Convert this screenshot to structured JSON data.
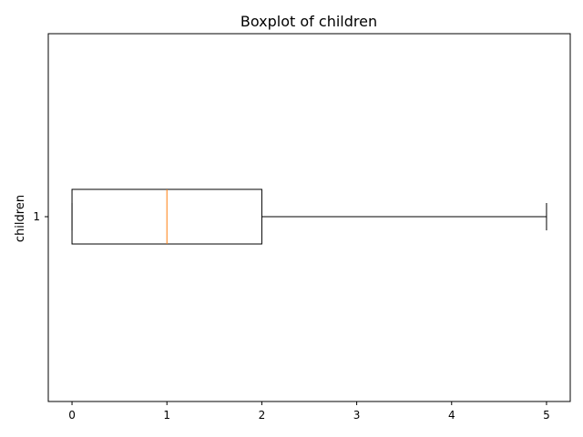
{
  "chart_data": {
    "type": "boxplot",
    "orientation": "horizontal",
    "title": "Boxplot of children",
    "ylabel": "children",
    "xlabel": "",
    "y_tick_labels": [
      "1"
    ],
    "x_ticks": [
      0,
      1,
      2,
      3,
      4,
      5
    ],
    "x_tick_labels": [
      "0",
      "1",
      "2",
      "3",
      "4",
      "5"
    ],
    "xlim": [
      -0.25,
      5.25
    ],
    "grid": false,
    "series": [
      {
        "min": 0,
        "q1": 0,
        "median": 1,
        "q3": 2,
        "max": 5
      }
    ],
    "colors": {
      "box": "#000000",
      "whisker": "#000000",
      "median": "#ff7f0e",
      "axis": "#000000"
    }
  }
}
